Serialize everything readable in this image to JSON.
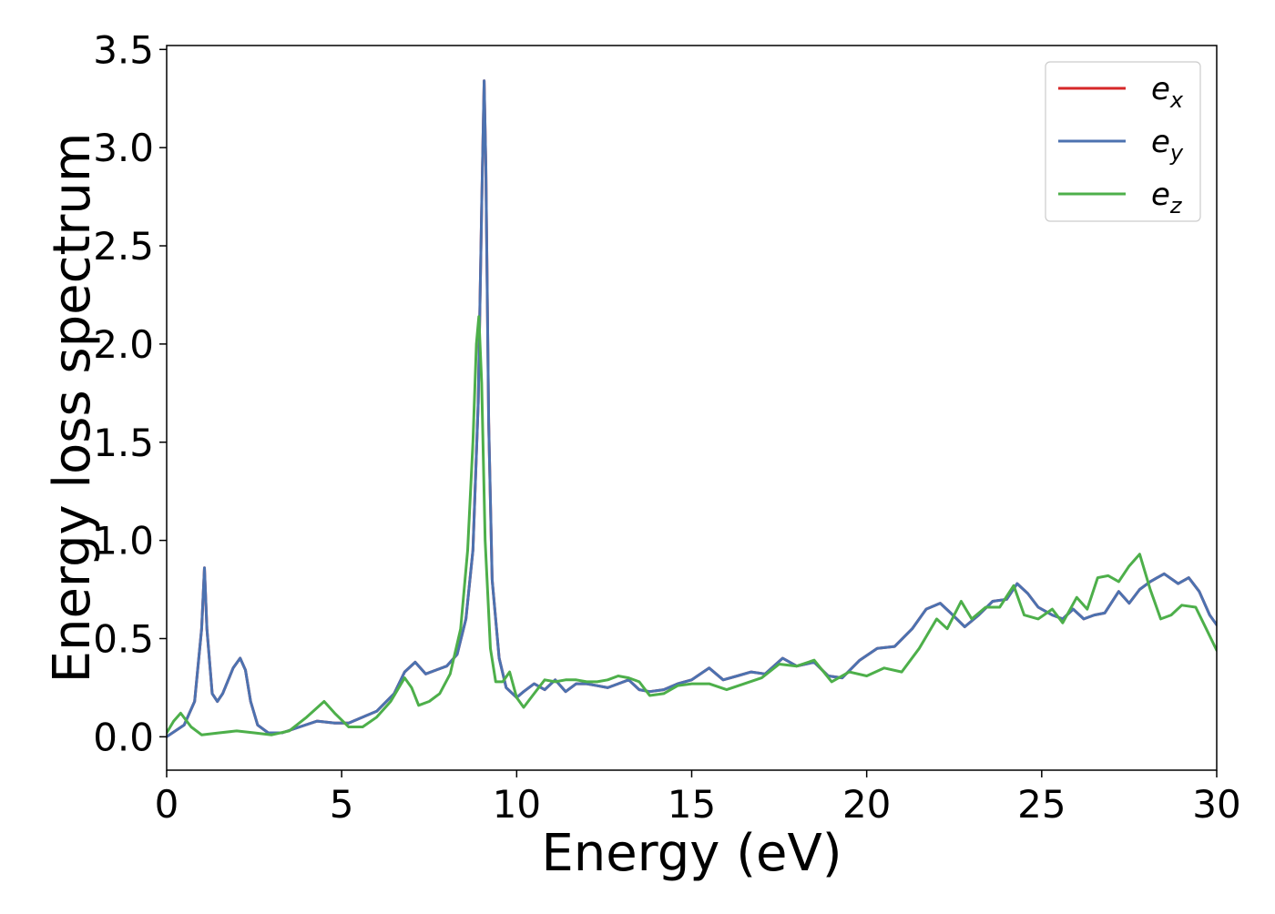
{
  "chart_data": {
    "type": "line",
    "title": "",
    "xlabel": "Energy (eV)",
    "ylabel": "Energy loss spectrum",
    "xlim": [
      0,
      30
    ],
    "ylim": [
      -0.17,
      3.52
    ],
    "xticks": [
      0,
      5,
      10,
      15,
      20,
      25,
      30
    ],
    "xtick_labels": [
      "0",
      "5",
      "10",
      "15",
      "20",
      "25",
      "30"
    ],
    "yticks": [
      0.0,
      0.5,
      1.0,
      1.5,
      2.0,
      2.5,
      3.0,
      3.5
    ],
    "ytick_labels": [
      "0.0",
      "0.5",
      "1.0",
      "1.5",
      "2.0",
      "2.5",
      "3.0",
      "3.5"
    ],
    "grid": false,
    "legend_position": "top-right",
    "series": [
      {
        "name": "e_x",
        "legend_base": "e",
        "legend_sub": "x",
        "color": "#d62728",
        "x": [
          0,
          0.5,
          0.8,
          1.0,
          1.08,
          1.15,
          1.3,
          1.45,
          1.6,
          1.9,
          2.1,
          2.25,
          2.4,
          2.6,
          2.9,
          3.3,
          3.8,
          4.3,
          4.8,
          5.2,
          5.6,
          6.0,
          6.5,
          6.8,
          7.1,
          7.4,
          7.7,
          8.0,
          8.3,
          8.55,
          8.75,
          8.9,
          9.0,
          9.07,
          9.12,
          9.2,
          9.3,
          9.5,
          9.7,
          10.0,
          10.2,
          10.5,
          10.8,
          11.1,
          11.4,
          11.7,
          12.0,
          12.3,
          12.6,
          12.9,
          13.2,
          13.5,
          13.8,
          14.2,
          14.6,
          15.0,
          15.5,
          15.9,
          16.3,
          16.7,
          17.1,
          17.6,
          18.0,
          18.5,
          18.9,
          19.3,
          19.8,
          20.3,
          20.8,
          21.3,
          21.7,
          22.1,
          22.4,
          22.8,
          23.2,
          23.6,
          24.0,
          24.3,
          24.6,
          24.9,
          25.3,
          25.6,
          25.9,
          26.2,
          26.5,
          26.8,
          27.2,
          27.5,
          27.8,
          28.1,
          28.5,
          28.9,
          29.2,
          29.5,
          29.8,
          30.0
        ],
        "y": [
          0.0,
          0.06,
          0.18,
          0.55,
          0.86,
          0.55,
          0.22,
          0.18,
          0.22,
          0.35,
          0.4,
          0.34,
          0.18,
          0.06,
          0.02,
          0.02,
          0.05,
          0.08,
          0.07,
          0.07,
          0.1,
          0.13,
          0.22,
          0.33,
          0.38,
          0.32,
          0.34,
          0.36,
          0.42,
          0.6,
          0.95,
          1.7,
          2.7,
          3.34,
          2.9,
          1.6,
          0.8,
          0.4,
          0.25,
          0.2,
          0.23,
          0.27,
          0.24,
          0.29,
          0.23,
          0.27,
          0.27,
          0.26,
          0.25,
          0.27,
          0.29,
          0.24,
          0.23,
          0.24,
          0.27,
          0.29,
          0.35,
          0.29,
          0.31,
          0.33,
          0.32,
          0.4,
          0.36,
          0.38,
          0.31,
          0.3,
          0.39,
          0.45,
          0.46,
          0.55,
          0.65,
          0.68,
          0.63,
          0.56,
          0.62,
          0.69,
          0.7,
          0.78,
          0.73,
          0.66,
          0.62,
          0.6,
          0.65,
          0.6,
          0.62,
          0.63,
          0.74,
          0.68,
          0.75,
          0.79,
          0.83,
          0.78,
          0.81,
          0.74,
          0.62,
          0.57
        ]
      },
      {
        "name": "e_y",
        "legend_base": "e",
        "legend_sub": "y",
        "color": "#4c72b0",
        "x": [
          0,
          0.5,
          0.8,
          1.0,
          1.08,
          1.15,
          1.3,
          1.45,
          1.6,
          1.9,
          2.1,
          2.25,
          2.4,
          2.6,
          2.9,
          3.3,
          3.8,
          4.3,
          4.8,
          5.2,
          5.6,
          6.0,
          6.5,
          6.8,
          7.1,
          7.4,
          7.7,
          8.0,
          8.3,
          8.55,
          8.75,
          8.9,
          9.0,
          9.07,
          9.12,
          9.2,
          9.3,
          9.5,
          9.7,
          10.0,
          10.2,
          10.5,
          10.8,
          11.1,
          11.4,
          11.7,
          12.0,
          12.3,
          12.6,
          12.9,
          13.2,
          13.5,
          13.8,
          14.2,
          14.6,
          15.0,
          15.5,
          15.9,
          16.3,
          16.7,
          17.1,
          17.6,
          18.0,
          18.5,
          18.9,
          19.3,
          19.8,
          20.3,
          20.8,
          21.3,
          21.7,
          22.1,
          22.4,
          22.8,
          23.2,
          23.6,
          24.0,
          24.3,
          24.6,
          24.9,
          25.3,
          25.6,
          25.9,
          26.2,
          26.5,
          26.8,
          27.2,
          27.5,
          27.8,
          28.1,
          28.5,
          28.9,
          29.2,
          29.5,
          29.8,
          30.0
        ],
        "y": [
          0.0,
          0.06,
          0.18,
          0.55,
          0.86,
          0.55,
          0.22,
          0.18,
          0.22,
          0.35,
          0.4,
          0.34,
          0.18,
          0.06,
          0.02,
          0.02,
          0.05,
          0.08,
          0.07,
          0.07,
          0.1,
          0.13,
          0.22,
          0.33,
          0.38,
          0.32,
          0.34,
          0.36,
          0.42,
          0.6,
          0.95,
          1.7,
          2.7,
          3.34,
          2.9,
          1.6,
          0.8,
          0.4,
          0.25,
          0.2,
          0.23,
          0.27,
          0.24,
          0.29,
          0.23,
          0.27,
          0.27,
          0.26,
          0.25,
          0.27,
          0.29,
          0.24,
          0.23,
          0.24,
          0.27,
          0.29,
          0.35,
          0.29,
          0.31,
          0.33,
          0.32,
          0.4,
          0.36,
          0.38,
          0.31,
          0.3,
          0.39,
          0.45,
          0.46,
          0.55,
          0.65,
          0.68,
          0.63,
          0.56,
          0.62,
          0.69,
          0.7,
          0.78,
          0.73,
          0.66,
          0.62,
          0.6,
          0.65,
          0.6,
          0.62,
          0.63,
          0.74,
          0.68,
          0.75,
          0.79,
          0.83,
          0.78,
          0.81,
          0.74,
          0.62,
          0.57
        ]
      },
      {
        "name": "e_z",
        "legend_base": "e",
        "legend_sub": "z",
        "color": "#4daf4a",
        "x": [
          0,
          0.2,
          0.4,
          0.7,
          1.0,
          1.5,
          2.0,
          2.5,
          3.0,
          3.5,
          4.0,
          4.5,
          4.8,
          5.2,
          5.6,
          6.0,
          6.4,
          6.8,
          7.0,
          7.2,
          7.5,
          7.8,
          8.1,
          8.4,
          8.6,
          8.75,
          8.85,
          8.92,
          9.0,
          9.1,
          9.25,
          9.4,
          9.6,
          9.8,
          10.0,
          10.2,
          10.5,
          10.8,
          11.1,
          11.4,
          11.7,
          12.0,
          12.3,
          12.6,
          12.9,
          13.2,
          13.5,
          13.8,
          14.2,
          14.6,
          15.0,
          15.5,
          16.0,
          16.5,
          17.0,
          17.5,
          18.0,
          18.5,
          19.0,
          19.5,
          20.0,
          20.5,
          21.0,
          21.5,
          22.0,
          22.3,
          22.7,
          23.0,
          23.4,
          23.8,
          24.2,
          24.5,
          24.9,
          25.3,
          25.6,
          26.0,
          26.3,
          26.6,
          26.9,
          27.2,
          27.5,
          27.8,
          28.1,
          28.4,
          28.7,
          29.0,
          29.4,
          29.7,
          30.0
        ],
        "y": [
          0.02,
          0.08,
          0.12,
          0.05,
          0.01,
          0.02,
          0.03,
          0.02,
          0.01,
          0.03,
          0.1,
          0.18,
          0.12,
          0.05,
          0.05,
          0.1,
          0.18,
          0.3,
          0.25,
          0.16,
          0.18,
          0.22,
          0.32,
          0.55,
          0.95,
          1.5,
          2.0,
          2.14,
          1.8,
          1.0,
          0.45,
          0.28,
          0.28,
          0.33,
          0.2,
          0.15,
          0.22,
          0.29,
          0.28,
          0.29,
          0.29,
          0.28,
          0.28,
          0.29,
          0.31,
          0.3,
          0.28,
          0.21,
          0.22,
          0.26,
          0.27,
          0.27,
          0.24,
          0.27,
          0.3,
          0.37,
          0.36,
          0.39,
          0.28,
          0.33,
          0.31,
          0.35,
          0.33,
          0.45,
          0.6,
          0.55,
          0.69,
          0.6,
          0.66,
          0.66,
          0.77,
          0.62,
          0.6,
          0.65,
          0.58,
          0.71,
          0.65,
          0.81,
          0.82,
          0.79,
          0.87,
          0.93,
          0.75,
          0.6,
          0.62,
          0.67,
          0.66,
          0.55,
          0.44
        ]
      }
    ]
  }
}
